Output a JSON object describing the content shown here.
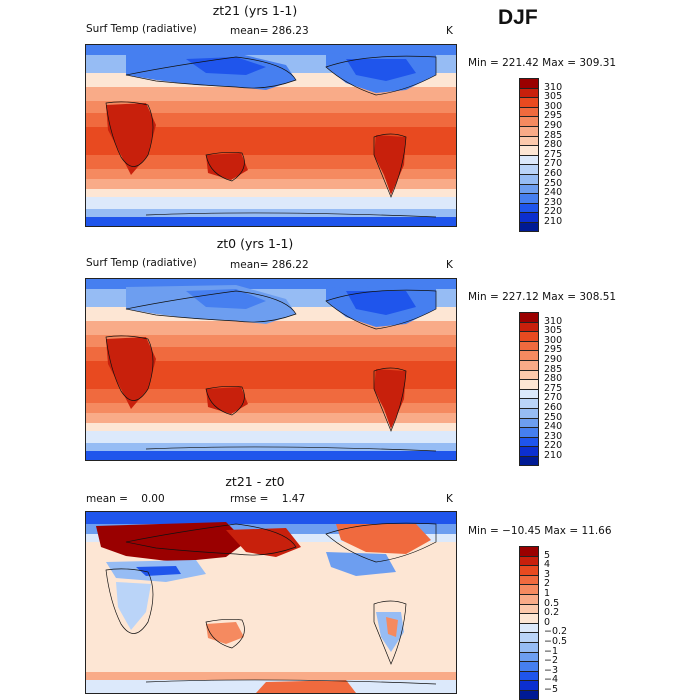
{
  "season": "DJF",
  "panels": [
    {
      "title": "zt21 (yrs 1-1)",
      "left_label": "Surf Temp (radiative)",
      "mean": "mean= 286.23",
      "units": "K",
      "minmax": "Min = 221.42 Max = 309.31",
      "legend_labels": [
        "310",
        "305",
        "300",
        "295",
        "290",
        "285",
        "280",
        "275",
        "270",
        "260",
        "250",
        "240",
        "230",
        "220",
        "210"
      ],
      "legend_colors": [
        "#9a0000",
        "#c8200c",
        "#e84a20",
        "#f06a3e",
        "#f58a60",
        "#f9ab88",
        "#fcc9ac",
        "#fde6d4",
        "#dce9fb",
        "#bad4f8",
        "#96bcf4",
        "#6d9ef0",
        "#467ff0",
        "#1f55ec",
        "#0c2fcf",
        "#001a94"
      ],
      "type": "abs"
    },
    {
      "title": "zt0 (yrs 1-1)",
      "left_label": "Surf Temp (radiative)",
      "mean": "mean= 286.22",
      "units": "K",
      "minmax": "Min = 227.12 Max = 308.51",
      "legend_labels": [
        "310",
        "305",
        "300",
        "295",
        "290",
        "285",
        "280",
        "275",
        "270",
        "260",
        "250",
        "240",
        "230",
        "220",
        "210"
      ],
      "legend_colors": [
        "#9a0000",
        "#c8200c",
        "#e84a20",
        "#f06a3e",
        "#f58a60",
        "#f9ab88",
        "#fcc9ac",
        "#fde6d4",
        "#dce9fb",
        "#bad4f8",
        "#96bcf4",
        "#6d9ef0",
        "#467ff0",
        "#1f55ec",
        "#0c2fcf",
        "#001a94"
      ],
      "type": "abs"
    },
    {
      "title": "zt21 - zt0",
      "left_label": "mean =    0.00",
      "mean": "rmse =    1.47",
      "units": "K",
      "minmax": "Min = −10.45 Max =  11.66",
      "legend_labels": [
        "5",
        "4",
        "3",
        "2",
        "1",
        "0.5",
        "0.2",
        "0",
        "−0.2",
        "−0.5",
        "−1",
        "−2",
        "−3",
        "−4",
        "−5"
      ],
      "legend_colors": [
        "#9a0000",
        "#c8200c",
        "#e84a20",
        "#f06a3e",
        "#f58a60",
        "#f9ab88",
        "#fcc9ac",
        "#fde6d4",
        "#dce9fb",
        "#bad4f8",
        "#96bcf4",
        "#6d9ef0",
        "#467ff0",
        "#1f55ec",
        "#0c2fcf",
        "#001a94"
      ],
      "type": "diff"
    }
  ]
}
